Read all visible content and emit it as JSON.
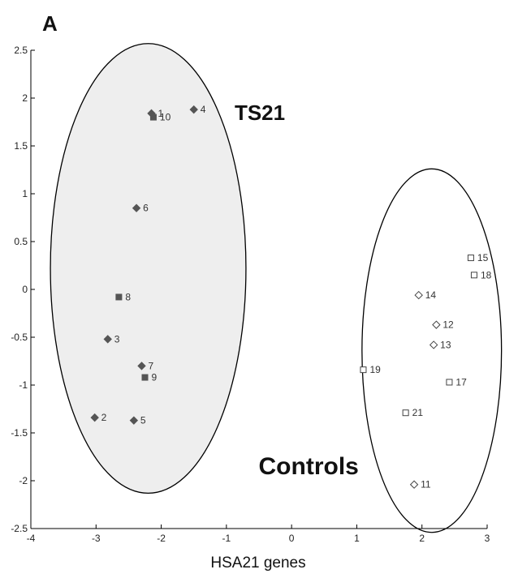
{
  "panel_label": "A",
  "chart_data": {
    "type": "scatter",
    "xlabel": "HSA21 genes",
    "ylabel": "",
    "xlim": [
      -4,
      3
    ],
    "ylim": [
      -2.5,
      2.5
    ],
    "xticks": [
      -4,
      -3,
      -2,
      -1,
      0,
      1,
      2,
      3
    ],
    "yticks": [
      -2.5,
      -2,
      -1.5,
      -1,
      -0.5,
      0,
      0.5,
      1,
      1.5,
      2,
      2.5
    ],
    "grid": false,
    "points": [
      {
        "label": "1",
        "x": -2.15,
        "y": 1.84,
        "marker": "diamond",
        "filled": true
      },
      {
        "label": "10",
        "x": -2.12,
        "y": 1.8,
        "marker": "square",
        "filled": true
      },
      {
        "label": "4",
        "x": -1.5,
        "y": 1.88,
        "marker": "diamond",
        "filled": true
      },
      {
        "label": "6",
        "x": -2.38,
        "y": 0.85,
        "marker": "diamond",
        "filled": true
      },
      {
        "label": "8",
        "x": -2.65,
        "y": -0.08,
        "marker": "square",
        "filled": true
      },
      {
        "label": "3",
        "x": -2.82,
        "y": -0.52,
        "marker": "diamond",
        "filled": true
      },
      {
        "label": "7",
        "x": -2.3,
        "y": -0.8,
        "marker": "diamond",
        "filled": true
      },
      {
        "label": "9",
        "x": -2.25,
        "y": -0.92,
        "marker": "square",
        "filled": true
      },
      {
        "label": "2",
        "x": -3.02,
        "y": -1.34,
        "marker": "diamond",
        "filled": true
      },
      {
        "label": "5",
        "x": -2.42,
        "y": -1.37,
        "marker": "diamond",
        "filled": true
      },
      {
        "label": "15",
        "x": 2.75,
        "y": 0.33,
        "marker": "square",
        "filled": false
      },
      {
        "label": "18",
        "x": 2.8,
        "y": 0.15,
        "marker": "square",
        "filled": false
      },
      {
        "label": "14",
        "x": 1.95,
        "y": -0.06,
        "marker": "diamond",
        "filled": false
      },
      {
        "label": "12",
        "x": 2.22,
        "y": -0.37,
        "marker": "diamond",
        "filled": false
      },
      {
        "label": "13",
        "x": 2.18,
        "y": -0.58,
        "marker": "diamond",
        "filled": false
      },
      {
        "label": "19",
        "x": 1.1,
        "y": -0.84,
        "marker": "square",
        "filled": false
      },
      {
        "label": "17",
        "x": 2.42,
        "y": -0.97,
        "marker": "square",
        "filled": false
      },
      {
        "label": "21",
        "x": 1.75,
        "y": -1.29,
        "marker": "square",
        "filled": false
      },
      {
        "label": "11",
        "x": 1.88,
        "y": -2.04,
        "marker": "diamond",
        "filled": false
      }
    ],
    "groups": [
      {
        "label": "TS21",
        "center": [
          -2.2,
          0.22
        ],
        "radii": [
          1.5,
          2.35
        ],
        "filled": true
      },
      {
        "label": "Controls",
        "center": [
          2.15,
          -0.64
        ],
        "radii": [
          1.07,
          1.9
        ],
        "filled": false
      }
    ],
    "colors": {
      "filled_marker": "#555555",
      "open_marker": "#444444",
      "ellipse_fill": "#eeeeee",
      "ellipse_stroke": "#000000",
      "axis": "#000000"
    }
  }
}
